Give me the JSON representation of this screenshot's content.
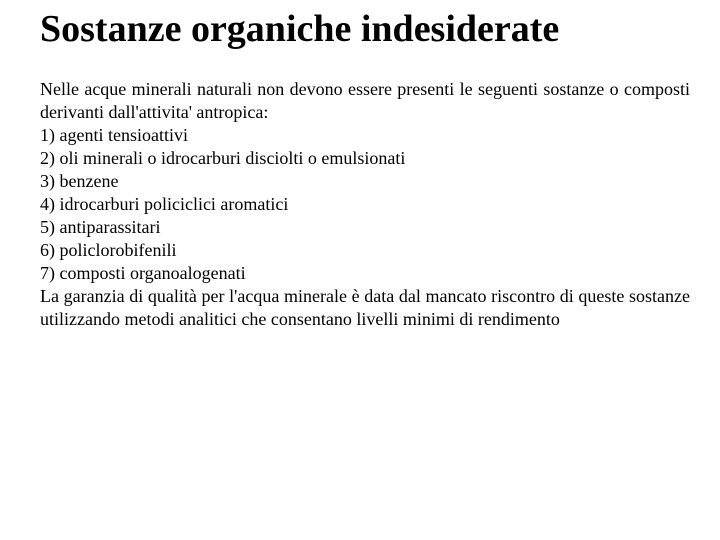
{
  "slide": {
    "title": "Sostanze organiche indesiderate",
    "intro": "Nelle acque minerali naturali non devono essere presenti le seguenti sostanze o composti derivanti dall'attivita' antropica:",
    "items": [
      "1) agenti tensioattivi",
      "2) oli minerali o idrocarburi disciolti o emulsionati",
      "3) benzene",
      "4) idrocarburi policiclici aromatici",
      "5) antiparassitari",
      "6) policlorobifenili",
      "7) composti organoalogenati"
    ],
    "closing": "La garanzia di qualità per l'acqua minerale è data dal mancato riscontro di queste sostanze utilizzando metodi analitici che consentano livelli minimi di rendimento"
  },
  "style": {
    "background_color": "#ffffff",
    "text_color": "#000000",
    "font_family": "Comic Sans MS",
    "title_fontsize": 38,
    "body_fontsize": 18
  }
}
